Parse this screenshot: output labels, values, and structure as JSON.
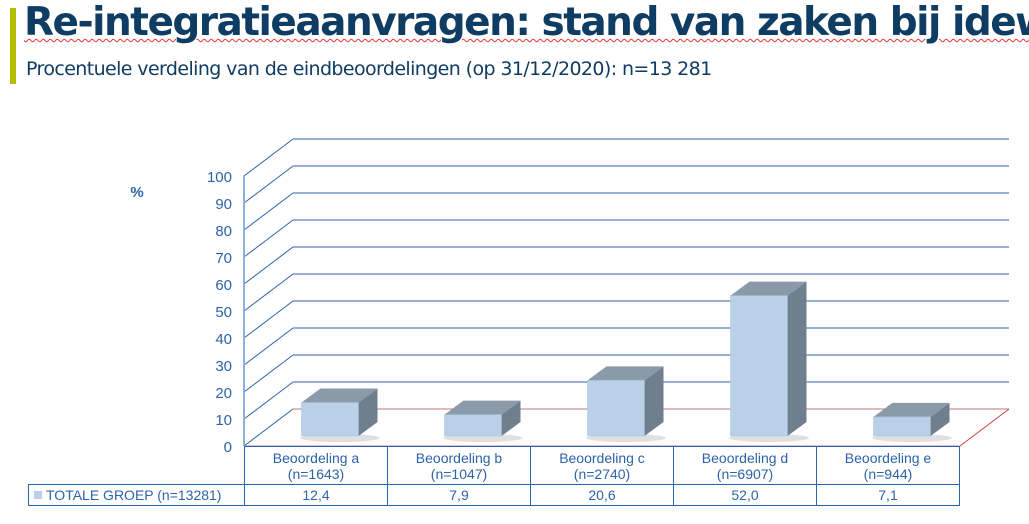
{
  "title": "Re-integratieaanvragen: stand van zaken bij idewe",
  "subtitle": "Procentuele verdeling van de eindbeoordelingen (op 31/12/2020): n=13 281",
  "chart_data": {
    "type": "bar",
    "ylabel": "%",
    "ylim": [
      0,
      100
    ],
    "yticks": [
      "0",
      "10",
      "20",
      "30",
      "40",
      "50",
      "60",
      "70",
      "80",
      "90",
      "100"
    ],
    "categories": [
      "Beoordeling a (n=1643)",
      "Beoordeling b (n=1047)",
      "Beoordeling c (n=2740)",
      "Beoordeling d (n=6907)",
      "Beoordeling e (n=944)"
    ],
    "category_lines": [
      [
        "Beoordeling a",
        "(n=1643)"
      ],
      [
        "Beoordeling b",
        "(n=1047)"
      ],
      [
        "Beoordeling c",
        "(n=2740)"
      ],
      [
        "Beoordeling d",
        "(n=6907)"
      ],
      [
        "Beoordeling e",
        "(n=944)"
      ]
    ],
    "series": [
      {
        "name": "TOTALE GROEP (n=13281)",
        "values": [
          12.4,
          7.9,
          20.6,
          52.0,
          7.1
        ],
        "labels": [
          "12,4",
          "7,9",
          "20,6",
          "52,0",
          "7,1"
        ]
      }
    ],
    "grid": true,
    "colors": {
      "bar": "#b9d0e8",
      "top": "#8a9aa8",
      "side": "#6f7f8e",
      "axis": "#2d63a8"
    }
  }
}
